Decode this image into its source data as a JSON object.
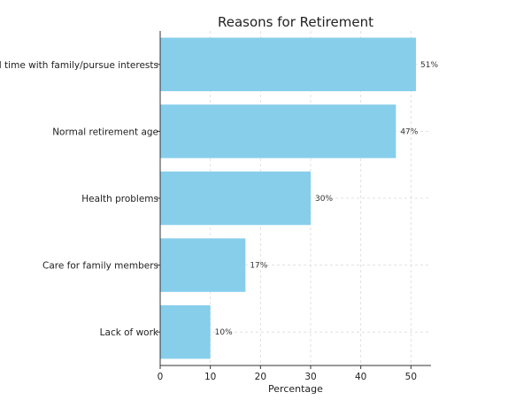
{
  "chart_data": {
    "type": "bar",
    "orientation": "horizontal",
    "title": "Reasons for Retirement",
    "xlabel": "Percentage",
    "ylabel": "",
    "categories": [
      "Spend time with family/pursue interests",
      "Normal retirement age",
      "Health problems",
      "Care for family members",
      "Lack of work"
    ],
    "values": [
      51,
      47,
      30,
      17,
      10
    ],
    "data_labels": [
      "51%",
      "47%",
      "30%",
      "17%",
      "10%"
    ],
    "xlim": [
      0,
      54
    ],
    "xticks": [
      0,
      10,
      20,
      30,
      40,
      50
    ],
    "grid": true,
    "bar_color": "#87CEEB"
  }
}
